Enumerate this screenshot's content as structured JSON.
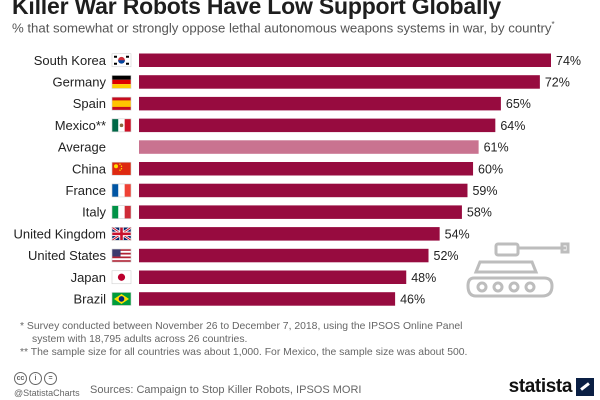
{
  "header": {
    "title": "Killer War Robots Have Low Support Globally",
    "subtitle": "% that somewhat or strongly oppose lethal autonomous weapons systems in war, by country",
    "subtitle_mark": "*"
  },
  "chart_data": {
    "type": "bar",
    "orientation": "horizontal",
    "categories": [
      "South Korea",
      "Germany",
      "Spain",
      "Mexico**",
      "Average",
      "China",
      "France",
      "Italy",
      "United Kingdom",
      "United States",
      "Japan",
      "Brazil"
    ],
    "values": [
      74,
      72,
      65,
      64,
      61,
      60,
      59,
      58,
      54,
      52,
      48,
      46
    ],
    "value_labels": [
      "74%",
      "72%",
      "65%",
      "64%",
      "61%",
      "60%",
      "59%",
      "58%",
      "54%",
      "52%",
      "48%",
      "46%"
    ],
    "flags": [
      "south-korea-flag",
      "germany-flag",
      "spain-flag",
      "mexico-flag",
      "",
      "china-flag",
      "france-flag",
      "italy-flag",
      "united-kingdom-flag",
      "united-states-flag",
      "japan-flag",
      "brazil-flag"
    ],
    "xlim": [
      0,
      74
    ],
    "grid": false,
    "legend": "none",
    "colors": {
      "bar": "#970b3f",
      "average": "#c97390"
    }
  },
  "footnotes": {
    "note1": "*  Survey conducted between November 26 to December 7, 2018, using the IPSOS Online Panel",
    "note1b": "system with 18,795 adults across 26 countries.",
    "note2": "** The sample size for all countries was about 1,000. For Mexico, the sample size was about 500."
  },
  "footer": {
    "handle": "@StatistaCharts",
    "sources": "Sources: Campaign to Stop Killer Robots, IPSOS MORI",
    "brand": "statista",
    "icons": [
      "cc-icon",
      "by-icon",
      "equals-icon"
    ]
  }
}
